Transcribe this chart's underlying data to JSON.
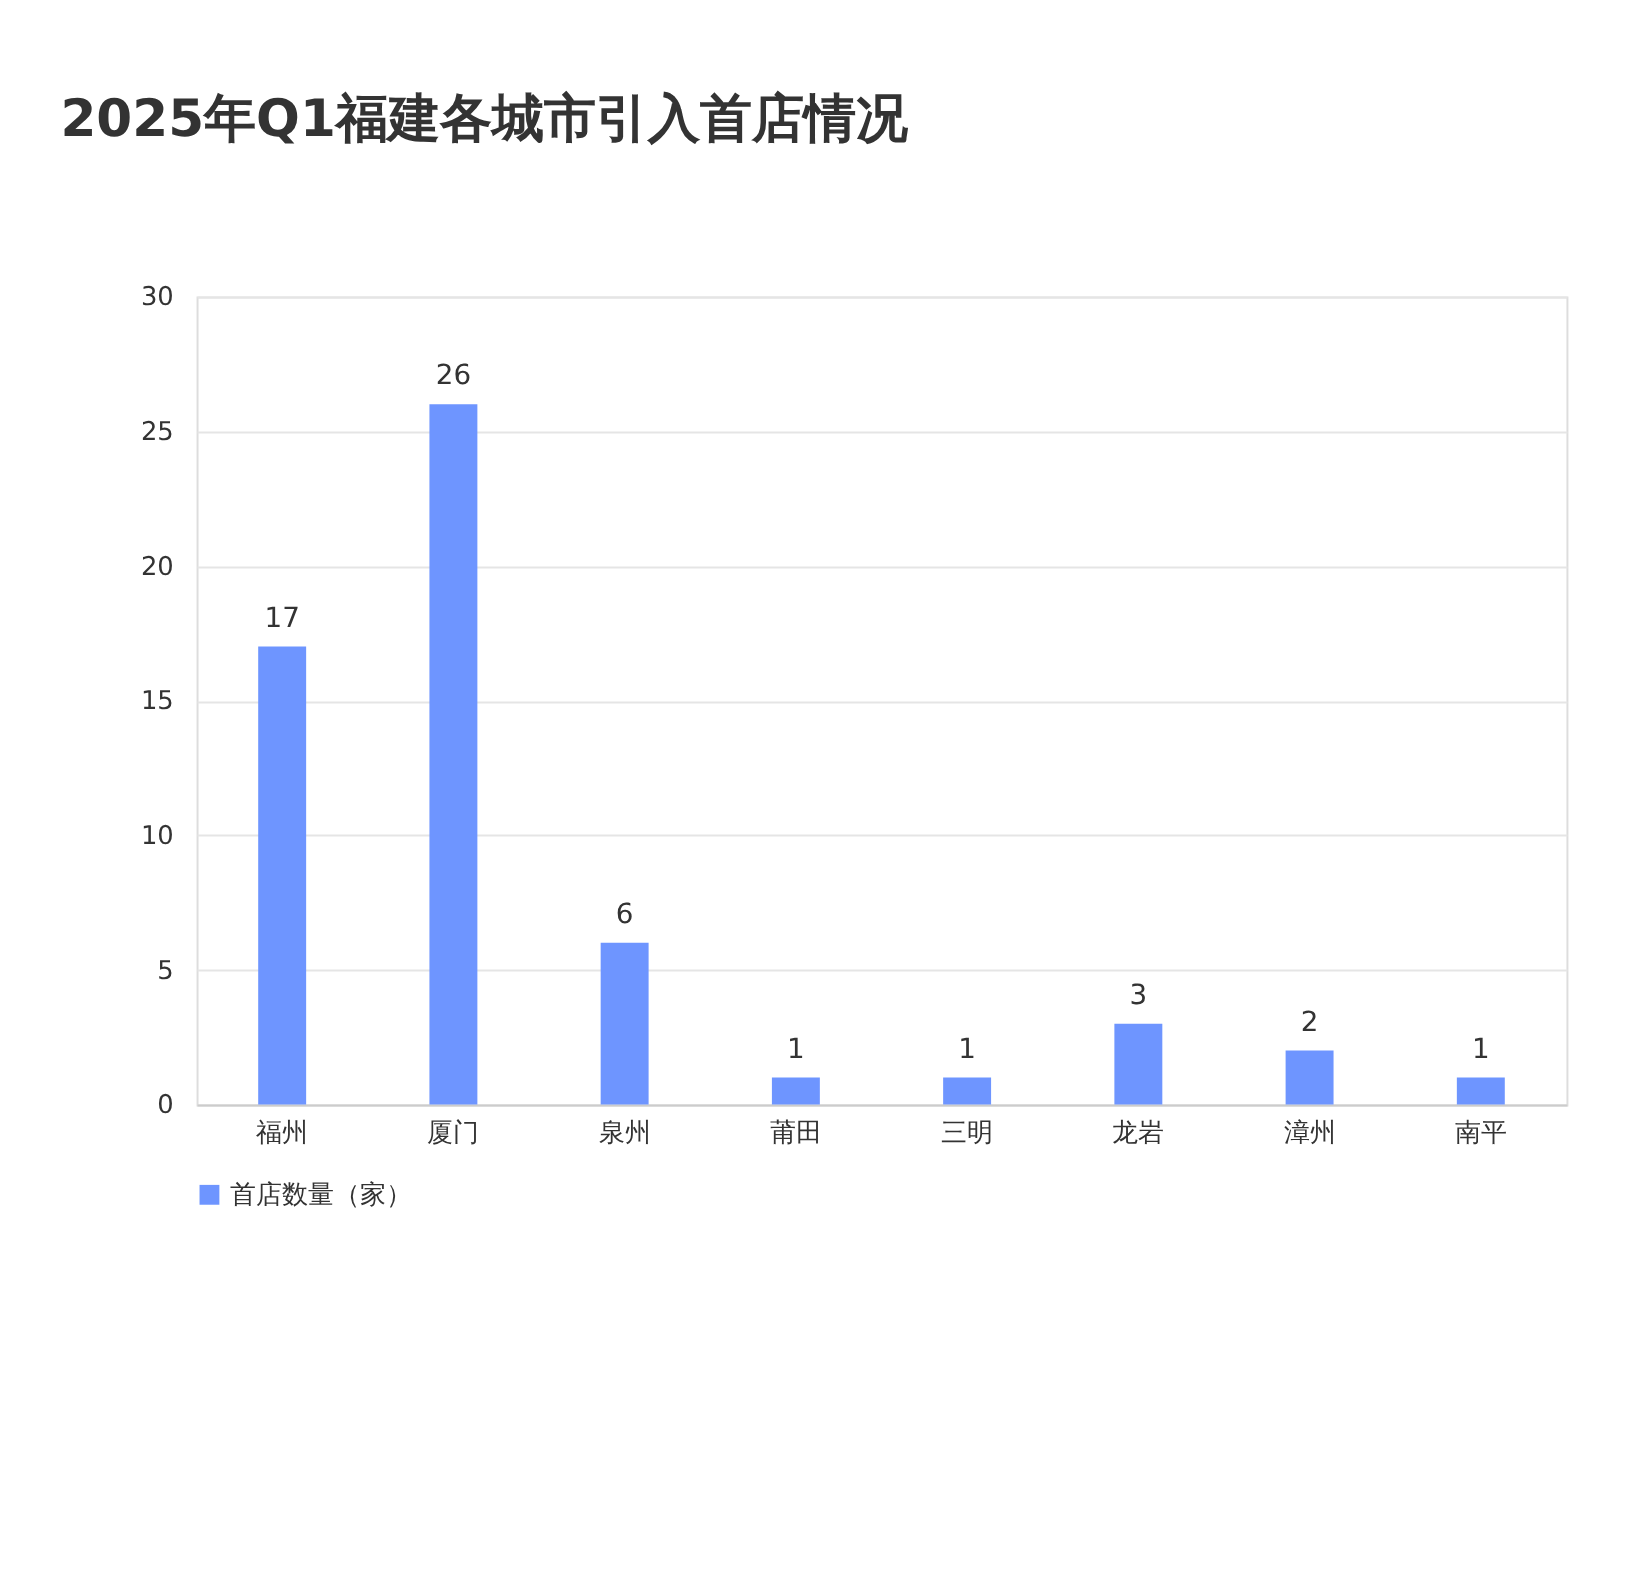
{
  "chart_data": {
    "type": "bar",
    "title": "2025年Q1福建各城市引入首店情况",
    "categories": [
      "福州",
      "厦门",
      "泉州",
      "莆田",
      "三明",
      "龙岩",
      "漳州",
      "南平"
    ],
    "series": [
      {
        "name": "首店数量（家）",
        "color": "#6e95ff",
        "values": [
          17,
          26,
          6,
          1,
          1,
          3,
          2,
          1
        ]
      }
    ],
    "ylim": [
      0,
      30
    ],
    "yticks": [
      0,
      5,
      10,
      15,
      20,
      25,
      30
    ],
    "grid": "y",
    "legend": "bottom",
    "data_labels": true
  }
}
